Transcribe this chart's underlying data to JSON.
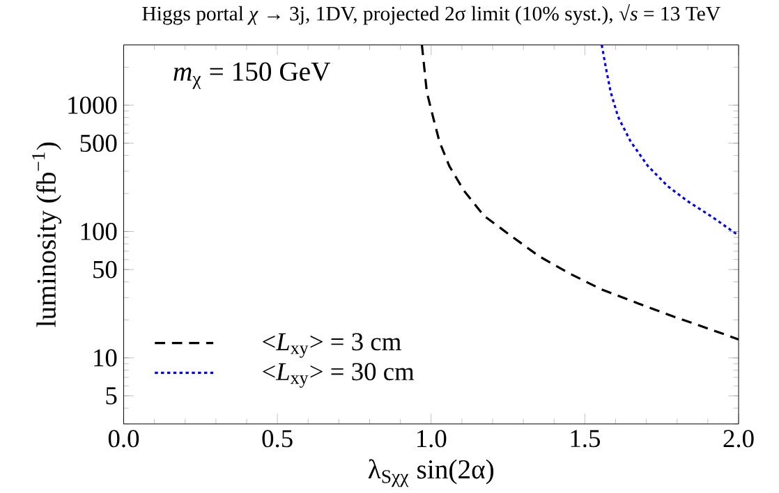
{
  "chart_data": {
    "type": "line",
    "title": "Higgs portal *χ* → 3j, 1DV, projected 2σ limit (10% syst.), √*s* = 13 TeV",
    "xlabel": "λ$_{Sχχ}$ sin(2α)",
    "ylabel": "luminosity (fb$^{−1}$)",
    "annotations": [
      "*m*$_{χ}$ = 150 GeV"
    ],
    "log": "y",
    "xlim": [
      0,
      2
    ],
    "ylim": [
      3,
      3000
    ],
    "xticks": [
      {
        "value": 0,
        "label": "0.0"
      },
      {
        "value": 0.5,
        "label": "0.5"
      },
      {
        "value": 1,
        "label": "1.0"
      },
      {
        "value": 1.5,
        "label": "1.5"
      },
      {
        "value": 2,
        "label": "2.0"
      }
    ],
    "yticks": [
      5,
      10,
      50,
      100,
      500,
      1000
    ],
    "legend": "bottom left",
    "series": [
      {
        "name": "<*L*$_{xy}$> = 3 cm",
        "color": "#000000",
        "line_style": "dashed",
        "x": [
          0.97,
          0.986,
          1.006,
          1.027,
          1.059,
          1.107,
          1.172,
          1.261,
          1.35,
          1.447,
          1.552,
          1.673,
          1.794,
          1.915,
          2.0
        ],
        "values": [
          3000,
          1270,
          810,
          515,
          330,
          210,
          133,
          92,
          64,
          47,
          35,
          27,
          21,
          16.6,
          14
        ]
      },
      {
        "name": "<*L*$_{xy}$> = 30 cm",
        "color": "#0000ff",
        "line_style": "dotted",
        "x": [
          1.555,
          1.568,
          1.584,
          1.608,
          1.649,
          1.705,
          1.77,
          1.834,
          1.915,
          2.0
        ],
        "values": [
          3000,
          2000,
          1270,
          810,
          515,
          330,
          228,
          174,
          130,
          93
        ]
      }
    ]
  }
}
